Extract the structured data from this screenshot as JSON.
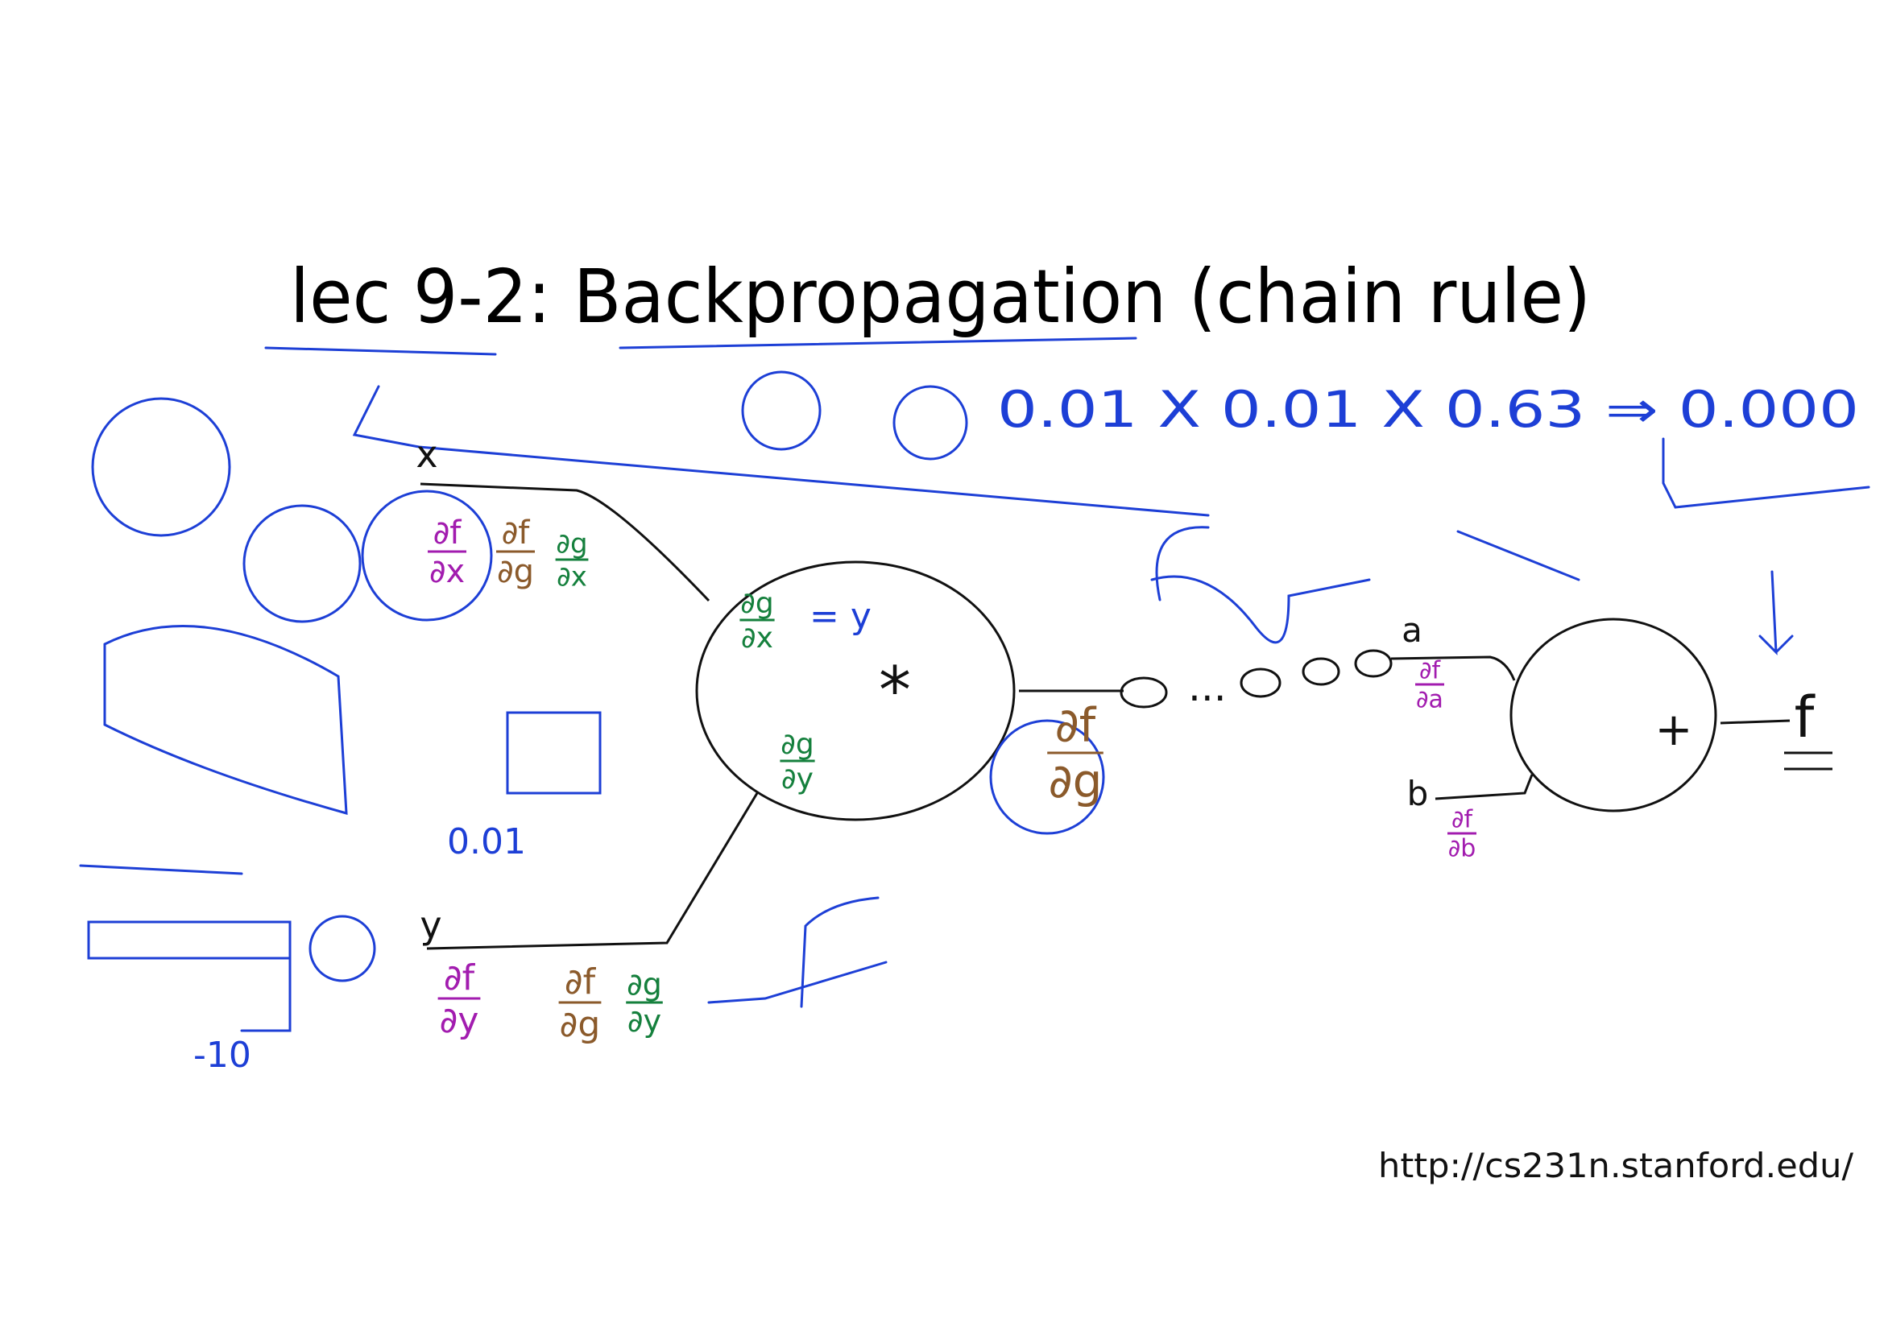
{
  "slide": {
    "title": "lec 9-2: Backpropagation (chain rule)",
    "url": "http://cs231n.stanford.edu/"
  },
  "graph": {
    "inputs": [
      "x",
      "y"
    ],
    "gates": [
      "*",
      "+"
    ],
    "chain_inputs": [
      "a",
      "b"
    ],
    "output": "f",
    "ellipsis": "..."
  },
  "annotations": {
    "product": "0.01 X 0.01 X 0.63 ⇒ 0.000",
    "local_value": "0.01",
    "input_value": "-10",
    "dgdx_equals": "= y",
    "fractions": [
      {
        "id": "dfdx",
        "num": "∂f",
        "den": "∂x",
        "color": "#a21caf"
      },
      {
        "id": "dfdg1",
        "num": "∂f",
        "den": "∂g",
        "color": "#8b5a2b"
      },
      {
        "id": "dgdx1",
        "num": "∂g",
        "den": "∂x",
        "color": "#15803d"
      },
      {
        "id": "dfdy",
        "num": "∂f",
        "den": "∂y",
        "color": "#a21caf"
      },
      {
        "id": "dfdg2",
        "num": "∂f",
        "den": "∂g",
        "color": "#8b5a2b"
      },
      {
        "id": "dgdy1",
        "num": "∂g",
        "den": "∂y",
        "color": "#15803d"
      },
      {
        "id": "dgdx2",
        "num": "∂g",
        "den": "∂x",
        "color": "#15803d"
      },
      {
        "id": "dgdy2",
        "num": "∂g",
        "den": "∂y",
        "color": "#15803d"
      },
      {
        "id": "dfdg3",
        "num": "∂f",
        "den": "∂g",
        "color": "#8b5a2b"
      },
      {
        "id": "dfda",
        "num": "∂f",
        "den": "∂a",
        "color": "#a21caf"
      },
      {
        "id": "dfdb",
        "num": "∂f",
        "den": "∂b",
        "color": "#a21caf"
      }
    ]
  }
}
